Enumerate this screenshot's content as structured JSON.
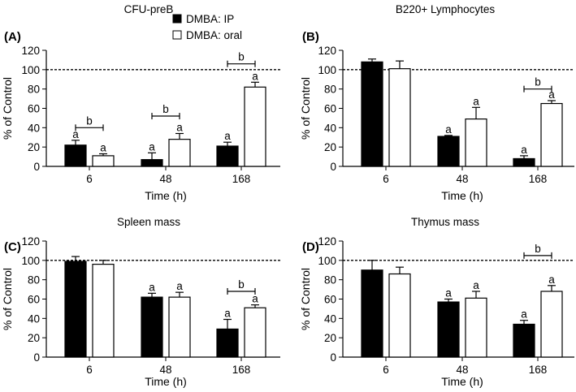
{
  "legend": {
    "series": [
      {
        "name": "DMBA: IP",
        "fill": "#000000"
      },
      {
        "name": "DMBA: oral",
        "fill": "#ffffff"
      }
    ]
  },
  "chart_data": [
    {
      "type": "bar",
      "panel": "(A)",
      "title": "CFU-preB",
      "xlabel": "Time (h)",
      "ylabel": "% of Control",
      "ylim": [
        0,
        120
      ],
      "yticks": [
        0,
        20,
        40,
        60,
        80,
        100,
        120
      ],
      "reference_line": 100,
      "categories": [
        "6",
        "48",
        "168"
      ],
      "series": [
        {
          "name": "DMBA: IP",
          "values": [
            22,
            7,
            21
          ],
          "errors": [
            5,
            7,
            4
          ],
          "labels": [
            "a",
            "a",
            "a"
          ]
        },
        {
          "name": "DMBA: oral",
          "values": [
            11,
            28,
            82
          ],
          "errors": [
            2,
            6,
            5
          ],
          "labels": [
            "a",
            "a",
            "a"
          ]
        }
      ],
      "brackets": [
        {
          "category": 0,
          "label": "b",
          "y": 40
        },
        {
          "category": 1,
          "label": "b",
          "y": 52
        },
        {
          "category": 2,
          "label": "b",
          "y": 106
        }
      ]
    },
    {
      "type": "bar",
      "panel": "(B)",
      "title": "B220+ Lymphocytes",
      "xlabel": "Time (h)",
      "ylabel": "% of Control",
      "ylim": [
        0,
        120
      ],
      "yticks": [
        0,
        20,
        40,
        60,
        80,
        100,
        120
      ],
      "reference_line": 100,
      "categories": [
        "6",
        "48",
        "168"
      ],
      "series": [
        {
          "name": "DMBA: IP",
          "values": [
            108,
            31,
            8
          ],
          "errors": [
            3,
            1,
            3
          ],
          "labels": [
            "",
            "a",
            "a"
          ]
        },
        {
          "name": "DMBA: oral",
          "values": [
            101,
            49,
            65
          ],
          "errors": [
            8,
            12,
            3
          ],
          "labels": [
            "",
            "a",
            "a"
          ]
        }
      ],
      "brackets": [
        {
          "category": 2,
          "label": "b",
          "y": 80
        }
      ]
    },
    {
      "type": "bar",
      "panel": "(C)",
      "title": "Spleen mass",
      "xlabel": "Time (h)",
      "ylabel": "% of Control",
      "ylim": [
        0,
        120
      ],
      "yticks": [
        0,
        20,
        40,
        60,
        80,
        100,
        120
      ],
      "reference_line": 100,
      "categories": [
        "6",
        "48",
        "168"
      ],
      "series": [
        {
          "name": "DMBA: IP",
          "values": [
            99,
            62,
            29
          ],
          "errors": [
            5,
            4,
            10
          ],
          "labels": [
            "",
            "a",
            "a"
          ]
        },
        {
          "name": "DMBA: oral",
          "values": [
            96,
            62,
            51
          ],
          "errors": [
            4,
            5,
            3
          ],
          "labels": [
            "",
            "a",
            "a"
          ]
        }
      ],
      "brackets": [
        {
          "category": 2,
          "label": "b",
          "y": 68
        }
      ]
    },
    {
      "type": "bar",
      "panel": "(D)",
      "title": "Thymus mass",
      "xlabel": "Time (h)",
      "ylabel": "% of Control",
      "ylim": [
        0,
        120
      ],
      "yticks": [
        0,
        20,
        40,
        60,
        80,
        100,
        120
      ],
      "reference_line": 100,
      "categories": [
        "6",
        "48",
        "168"
      ],
      "series": [
        {
          "name": "DMBA: IP",
          "values": [
            90,
            57,
            34
          ],
          "errors": [
            10,
            3,
            4
          ],
          "labels": [
            "",
            "a",
            "a"
          ]
        },
        {
          "name": "DMBA: oral",
          "values": [
            86,
            61,
            68
          ],
          "errors": [
            7,
            7,
            6
          ],
          "labels": [
            "",
            "a",
            "a"
          ]
        }
      ],
      "brackets": [
        {
          "category": 2,
          "label": "b",
          "y": 105
        }
      ]
    }
  ]
}
